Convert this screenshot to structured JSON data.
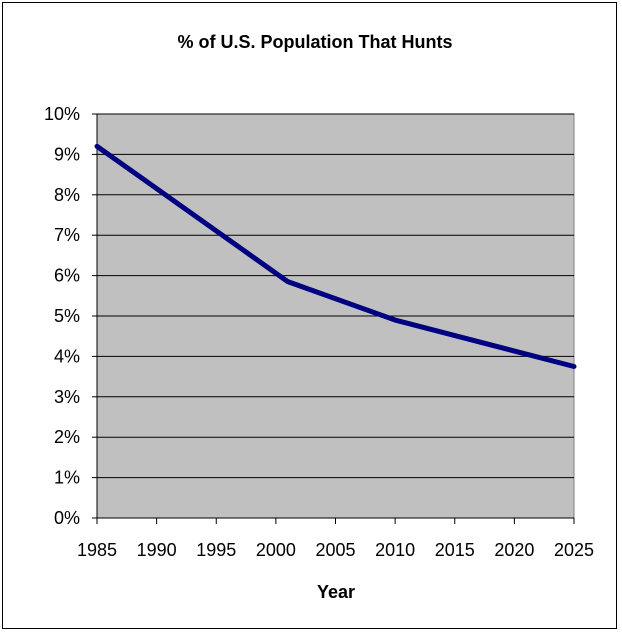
{
  "chart_data": {
    "type": "line",
    "title": "% of U.S. Population That Hunts",
    "xlabel": "Year",
    "ylabel": "",
    "x_ticks": [
      "1985",
      "1990",
      "1995",
      "2000",
      "2005",
      "2010",
      "2015",
      "2020",
      "2025"
    ],
    "y_ticks": [
      "0%",
      "1%",
      "2%",
      "3%",
      "4%",
      "5%",
      "6%",
      "7%",
      "8%",
      "9%",
      "10%"
    ],
    "xlim": [
      1985,
      2025
    ],
    "ylim": [
      0,
      10
    ],
    "grid": true,
    "legend": "none",
    "series": [
      {
        "x": [
          1985,
          2001,
          2010,
          2025
        ],
        "y": [
          9.2,
          5.85,
          4.9,
          3.75
        ]
      }
    ],
    "colors": {
      "plot_background": "#c0c0c0",
      "line": "#000080",
      "grid": "#000000"
    }
  }
}
